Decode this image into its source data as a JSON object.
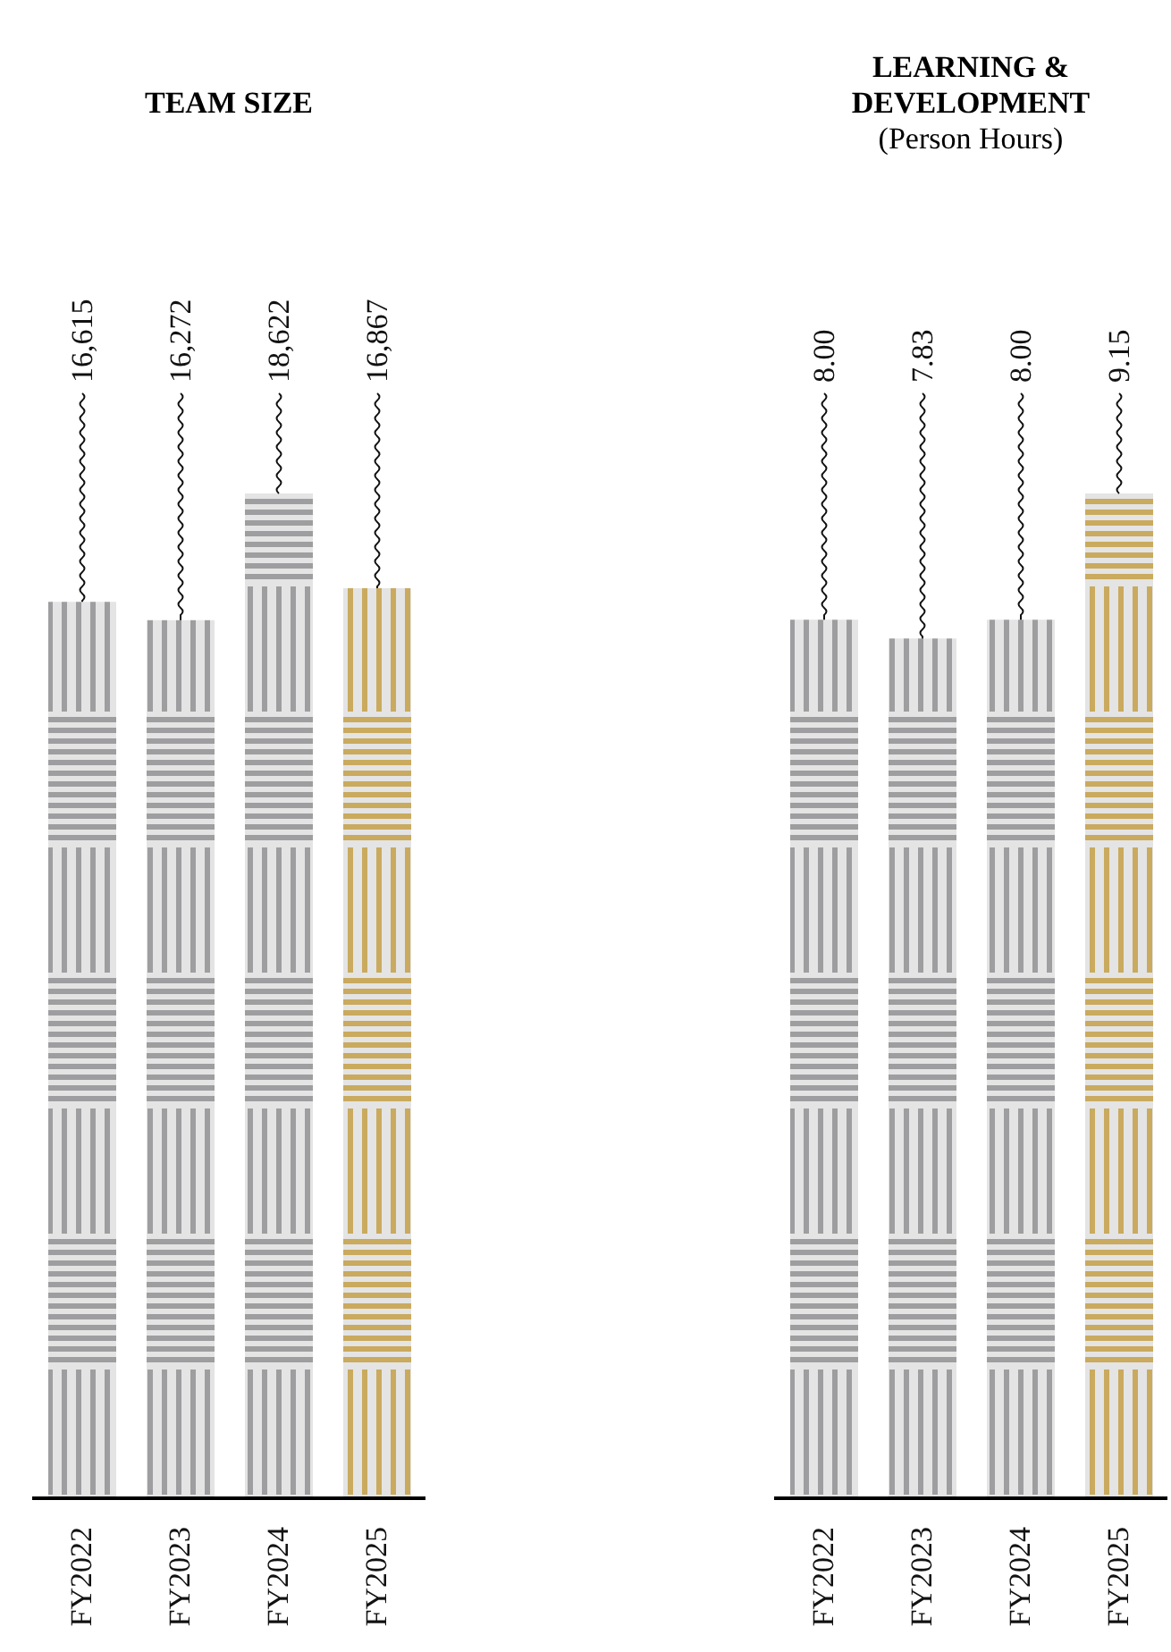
{
  "chart_data": [
    {
      "type": "bar",
      "title": "TEAM SIZE",
      "categories": [
        "FY2022",
        "FY2023",
        "FY2024",
        "FY2025"
      ],
      "values": [
        16615,
        16272,
        18622,
        16867
      ],
      "value_labels": [
        "16,615",
        "16,272",
        "18,622",
        "16,867"
      ],
      "colors": [
        "#9e9ea0",
        "#9e9ea0",
        "#9e9ea0",
        "#c9aa5e"
      ],
      "grid": false,
      "legend": false,
      "tick_labels": "x"
    },
    {
      "type": "bar",
      "title": "LEARNING & DEVELOPMENT",
      "subtitle": "(Person Hours)",
      "categories": [
        "FY2022",
        "FY2023",
        "FY2024",
        "FY2025"
      ],
      "values": [
        8.0,
        7.83,
        8.0,
        9.15
      ],
      "value_labels": [
        "8.00",
        "7.83",
        "8.00",
        "9.15"
      ],
      "colors": [
        "#9e9ea0",
        "#9e9ea0",
        "#9e9ea0",
        "#c9aa5e"
      ],
      "grid": false,
      "legend": false,
      "tick_labels": "x"
    }
  ]
}
